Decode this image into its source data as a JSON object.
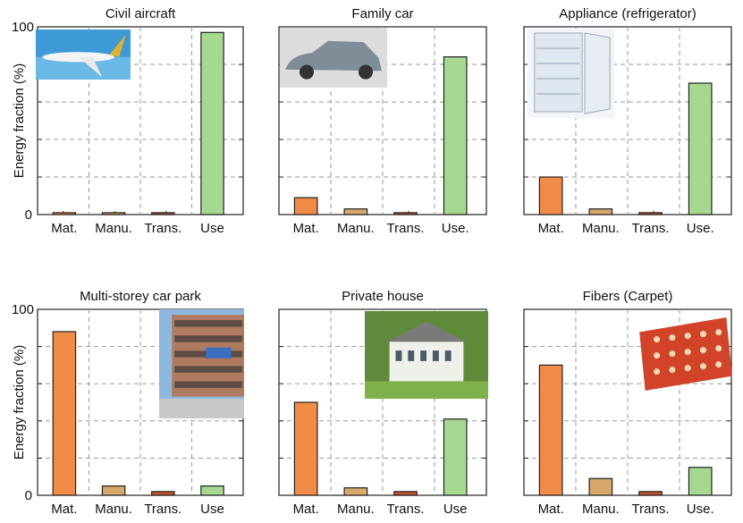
{
  "chart_data": [
    {
      "type": "bar",
      "title": "Civil aircraft",
      "ylabel": "Energy fraction (%)",
      "ylim": [
        0,
        100
      ],
      "yticks": [
        "0",
        "100"
      ],
      "categories": [
        "Mat.",
        "Manu.",
        "Trans.",
        "Use"
      ],
      "values": [
        1,
        1,
        1,
        97
      ],
      "image": "aircraft-photo"
    },
    {
      "type": "bar",
      "title": "Family car",
      "ylabel": "",
      "ylim": [
        0,
        100
      ],
      "yticks": [],
      "categories": [
        "Mat.",
        "Manu.",
        "Trans.",
        "Use."
      ],
      "values": [
        9,
        3,
        1,
        84
      ],
      "image": "car-photo"
    },
    {
      "type": "bar",
      "title": "Appliance (refrigerator)",
      "ylabel": "",
      "ylim": [
        0,
        100
      ],
      "yticks": [],
      "categories": [
        "Mat.",
        "Manu.",
        "Trans.",
        "Use."
      ],
      "values": [
        20,
        3,
        1,
        70
      ],
      "image": "refrigerator-photo"
    },
    {
      "type": "bar",
      "title": "Multi-storey car park",
      "ylabel": "Energy fraction (%)",
      "ylim": [
        0,
        100
      ],
      "yticks": [
        "0",
        "100"
      ],
      "categories": [
        "Mat.",
        "Manu.",
        "Trans.",
        "Use"
      ],
      "values": [
        88,
        5,
        2,
        5
      ],
      "image": "car-park-photo"
    },
    {
      "type": "bar",
      "title": "Private house",
      "ylabel": "",
      "ylim": [
        0,
        100
      ],
      "yticks": [],
      "categories": [
        "Mat.",
        "Manu.",
        "Trans.",
        "Use"
      ],
      "values": [
        50,
        4,
        2,
        41
      ],
      "image": "house-photo"
    },
    {
      "type": "bar",
      "title": "Fibers (Carpet)",
      "ylabel": "",
      "ylim": [
        0,
        100
      ],
      "yticks": [],
      "categories": [
        "Mat.",
        "Manu.",
        "Trans.",
        "Use."
      ],
      "values": [
        70,
        9,
        2,
        15
      ],
      "image": "carpet-photo"
    }
  ],
  "colors": {
    "mat": "#f08b48",
    "manu": "#d6a86c",
    "trans": "#c4532f",
    "use": "#a6d890",
    "grid": "#999999",
    "axis": "#222222"
  }
}
